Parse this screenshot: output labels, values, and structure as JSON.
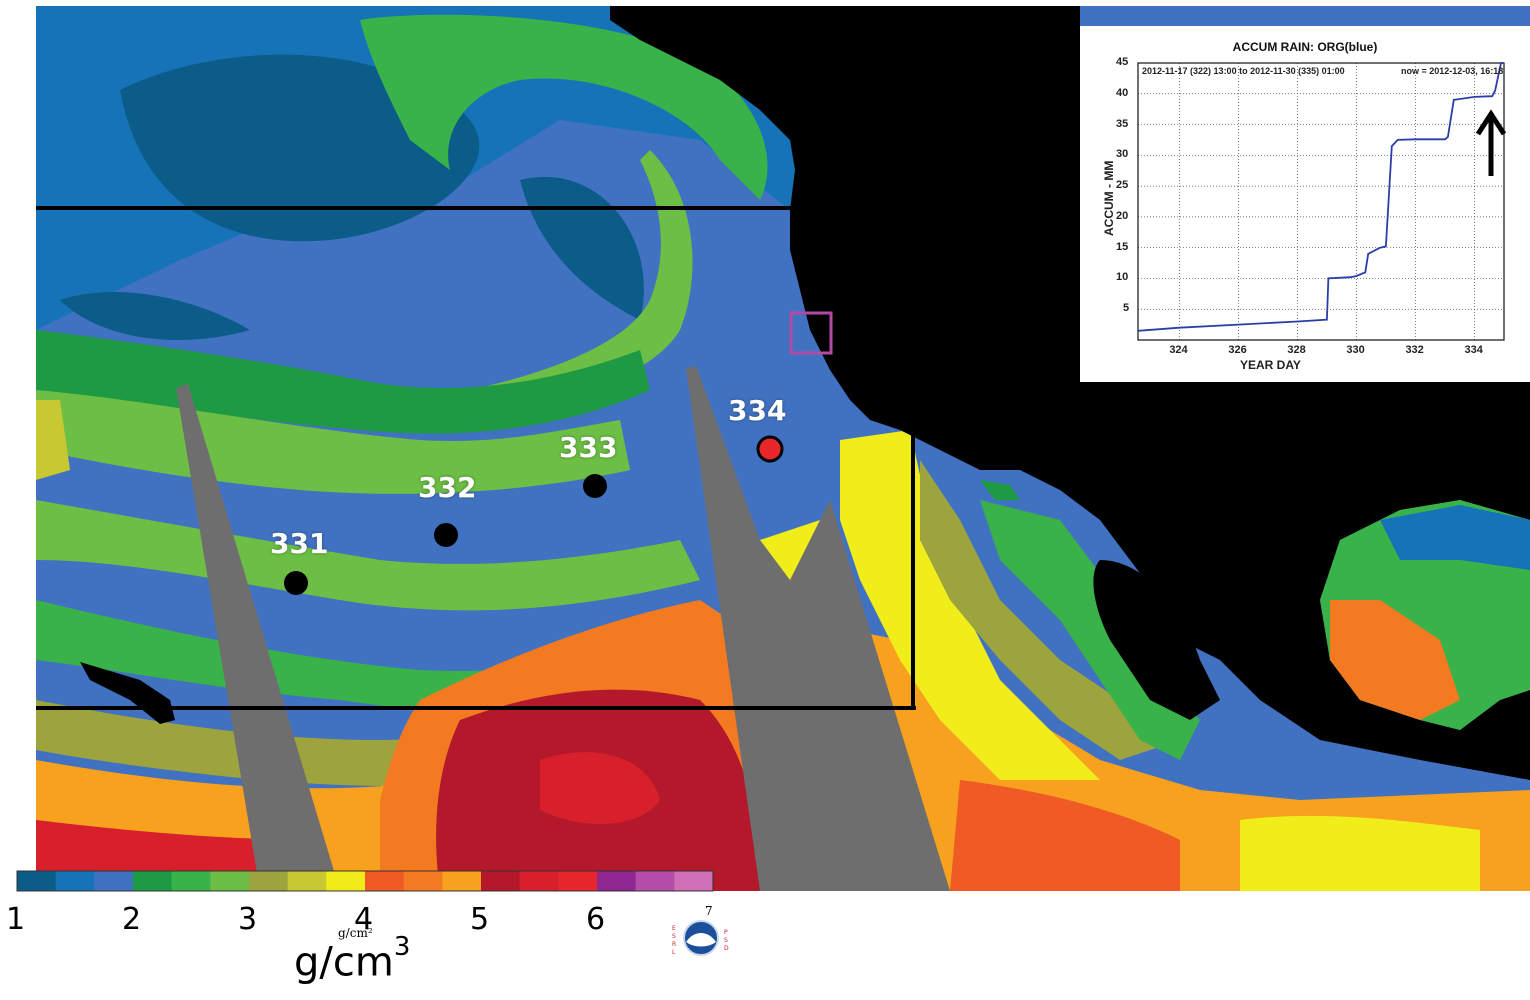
{
  "map": {
    "colors": {
      "land": "#000000",
      "missing": "#6e6e6e",
      "coast": "#8c8c8c",
      "box": "#000000",
      "marker": "#000000",
      "marker_highlight": "#e8272d",
      "site_box": "#b24aa6"
    },
    "track_points": [
      {
        "day": "331",
        "highlight": false
      },
      {
        "day": "332",
        "highlight": false
      },
      {
        "day": "333",
        "highlight": false
      },
      {
        "day": "334",
        "highlight": true
      }
    ]
  },
  "colorbar": {
    "colors": [
      "#0c5c8a",
      "#1673b8",
      "#4172c2",
      "#1f9a44",
      "#3ab24a",
      "#6cbf44",
      "#9da33d",
      "#c8c832",
      "#f1ed1b",
      "#f05a24",
      "#f47a22",
      "#f7a11e",
      "#b3192a",
      "#d8202c",
      "#e8272d",
      "#8e2792",
      "#b54ca7",
      "#cf6fb5"
    ],
    "labels": [
      "1",
      "2",
      "3",
      "4",
      "5",
      "6",
      "7"
    ],
    "unit_main": "g/cm",
    "unit_sup": "3",
    "unit_small": "g/cm²"
  },
  "inset": {
    "title": "ACCUM RAIN: ORG(blue)",
    "range_text": "2012-11-17 (322) 13:00   to   2012-11-30 (335) 01:00",
    "now_text": "now = 2012-12-03, 16:18",
    "ylabel": "ACCUM - MM",
    "xlabel": "YEAR DAY",
    "x_ticks": [
      "324",
      "326",
      "328",
      "330",
      "332",
      "334"
    ],
    "y_ticks": [
      "5",
      "10",
      "15",
      "20",
      "25",
      "30",
      "35",
      "40",
      "45"
    ],
    "line_color": "#2b3ea8",
    "chart_data": {
      "type": "line",
      "title": "ACCUM RAIN: ORG(blue)",
      "xlabel": "YEAR DAY",
      "ylabel": "ACCUM - MM",
      "xlim": [
        322.6,
        335.0
      ],
      "ylim": [
        0,
        45
      ],
      "grid": true,
      "series": [
        {
          "x": [
            322.6,
            324.0,
            326.0,
            328.0,
            329.0,
            329.05,
            329.8,
            330.0,
            330.3,
            330.4,
            330.8,
            331.0,
            331.2,
            331.4,
            332.0,
            333.0,
            333.1,
            333.3,
            334.0,
            334.6,
            334.7,
            334.9,
            335.0
          ],
          "y": [
            1.5,
            2.0,
            2.5,
            3.0,
            3.3,
            10.0,
            10.2,
            10.4,
            11.0,
            14.0,
            15.0,
            15.2,
            31.5,
            32.5,
            32.6,
            32.6,
            33.0,
            39.0,
            39.5,
            39.6,
            40.5,
            45.0,
            45.0
          ]
        }
      ]
    }
  }
}
